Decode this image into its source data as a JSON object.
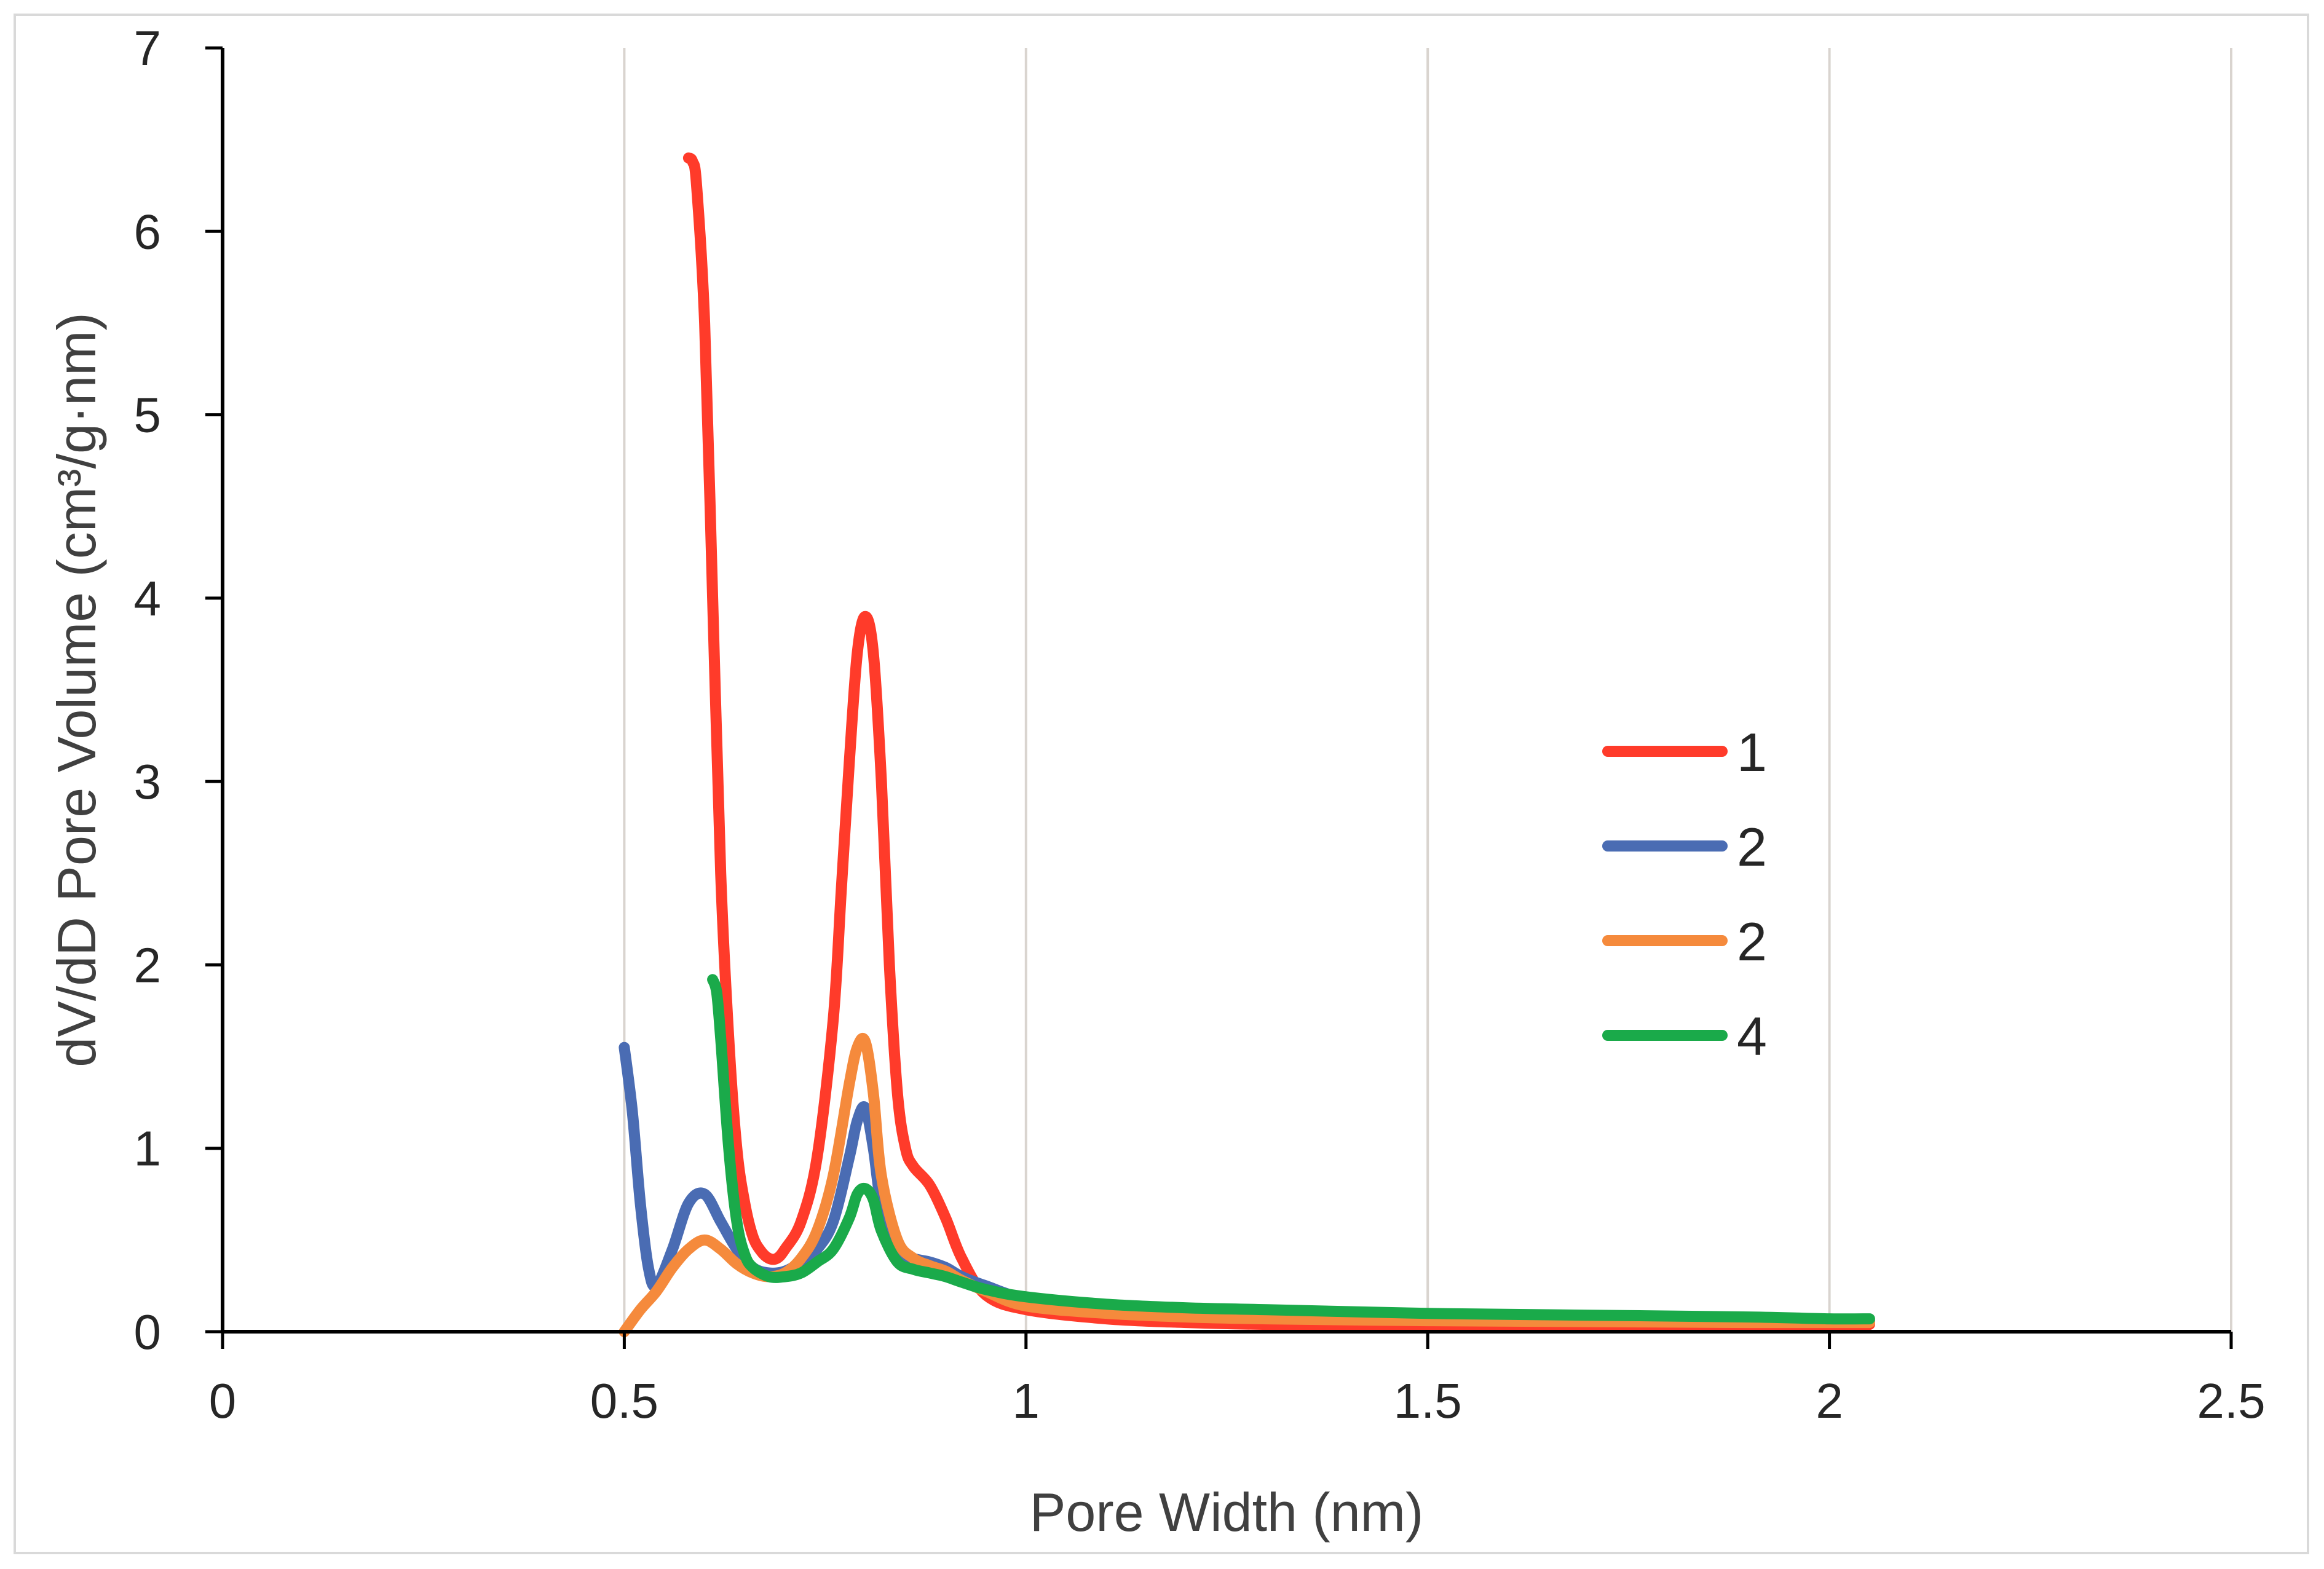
{
  "chart_data": {
    "type": "line",
    "title": "",
    "xlabel": "Pore Width (nm)",
    "ylabel": "dV/dD Pore Volume (cm³/g·nm)",
    "xlim": [
      0,
      2.5
    ],
    "ylim": [
      0,
      7
    ],
    "x_ticks": [
      "0",
      "0.5",
      "1",
      "1.5",
      "2",
      "2.5"
    ],
    "y_ticks": [
      "0",
      "1",
      "2",
      "3",
      "4",
      "5",
      "6",
      "7"
    ],
    "vertical_gridlines": true,
    "legend_position": "right-center",
    "series": [
      {
        "name": "1",
        "color": "#ff3b2a",
        "x": [
          0.58,
          0.585,
          0.59,
          0.6,
          0.61,
          0.62,
          0.63,
          0.64,
          0.65,
          0.66,
          0.67,
          0.68,
          0.69,
          0.7,
          0.72,
          0.74,
          0.76,
          0.77,
          0.78,
          0.79,
          0.8,
          0.81,
          0.82,
          0.83,
          0.84,
          0.85,
          0.86,
          0.88,
          0.9,
          0.92,
          0.95,
          1.0,
          1.1,
          1.2,
          1.3,
          1.5,
          1.7,
          1.9,
          2.0,
          2.05
        ],
        "values": [
          6.4,
          6.38,
          6.25,
          5.5,
          4.0,
          2.5,
          1.6,
          1.0,
          0.7,
          0.52,
          0.44,
          0.4,
          0.4,
          0.45,
          0.6,
          0.95,
          1.7,
          2.4,
          3.1,
          3.7,
          3.9,
          3.7,
          3.0,
          2.0,
          1.3,
          1.0,
          0.9,
          0.8,
          0.62,
          0.4,
          0.2,
          0.12,
          0.07,
          0.05,
          0.04,
          0.035,
          0.03,
          0.03,
          0.03,
          0.04
        ]
      },
      {
        "name": "2",
        "color": "#4a6cb3",
        "x": [
          0.5,
          0.51,
          0.52,
          0.53,
          0.54,
          0.56,
          0.58,
          0.6,
          0.62,
          0.64,
          0.66,
          0.68,
          0.7,
          0.72,
          0.74,
          0.76,
          0.78,
          0.79,
          0.8,
          0.81,
          0.82,
          0.84,
          0.86,
          0.88,
          0.9,
          0.92,
          0.95,
          1.0,
          1.1,
          1.2,
          1.3,
          1.5,
          1.7,
          1.9,
          2.0,
          2.05
        ],
        "values": [
          1.55,
          1.2,
          0.7,
          0.35,
          0.25,
          0.45,
          0.7,
          0.75,
          0.6,
          0.45,
          0.35,
          0.32,
          0.33,
          0.38,
          0.45,
          0.6,
          0.95,
          1.15,
          1.22,
          1.0,
          0.7,
          0.45,
          0.4,
          0.38,
          0.35,
          0.3,
          0.25,
          0.18,
          0.12,
          0.1,
          0.09,
          0.08,
          0.07,
          0.065,
          0.06,
          0.06
        ]
      },
      {
        "name": "2",
        "color": "#f58a3c",
        "x": [
          0.5,
          0.52,
          0.54,
          0.56,
          0.58,
          0.6,
          0.62,
          0.64,
          0.66,
          0.68,
          0.7,
          0.72,
          0.74,
          0.76,
          0.78,
          0.79,
          0.8,
          0.81,
          0.82,
          0.84,
          0.86,
          0.88,
          0.9,
          0.92,
          0.95,
          1.0,
          1.1,
          1.2,
          1.3,
          1.5,
          1.7,
          1.9,
          2.0,
          2.05
        ],
        "values": [
          0.0,
          0.12,
          0.22,
          0.35,
          0.45,
          0.5,
          0.45,
          0.37,
          0.32,
          0.3,
          0.32,
          0.4,
          0.55,
          0.85,
          1.35,
          1.55,
          1.58,
          1.3,
          0.85,
          0.5,
          0.4,
          0.36,
          0.33,
          0.28,
          0.22,
          0.14,
          0.1,
          0.08,
          0.07,
          0.06,
          0.055,
          0.05,
          0.05,
          0.05
        ]
      },
      {
        "name": "4",
        "color": "#1aaa4a",
        "x": [
          0.61,
          0.615,
          0.62,
          0.63,
          0.64,
          0.65,
          0.66,
          0.68,
          0.7,
          0.72,
          0.74,
          0.76,
          0.78,
          0.79,
          0.8,
          0.81,
          0.82,
          0.84,
          0.86,
          0.88,
          0.9,
          0.92,
          0.95,
          1.0,
          1.1,
          1.2,
          1.3,
          1.5,
          1.7,
          1.9,
          2.0,
          2.05
        ],
        "values": [
          1.92,
          1.85,
          1.6,
          1.0,
          0.6,
          0.42,
          0.35,
          0.3,
          0.3,
          0.32,
          0.38,
          0.45,
          0.62,
          0.75,
          0.78,
          0.72,
          0.55,
          0.38,
          0.34,
          0.32,
          0.3,
          0.27,
          0.23,
          0.19,
          0.15,
          0.13,
          0.12,
          0.1,
          0.09,
          0.08,
          0.07,
          0.07
        ]
      }
    ]
  }
}
